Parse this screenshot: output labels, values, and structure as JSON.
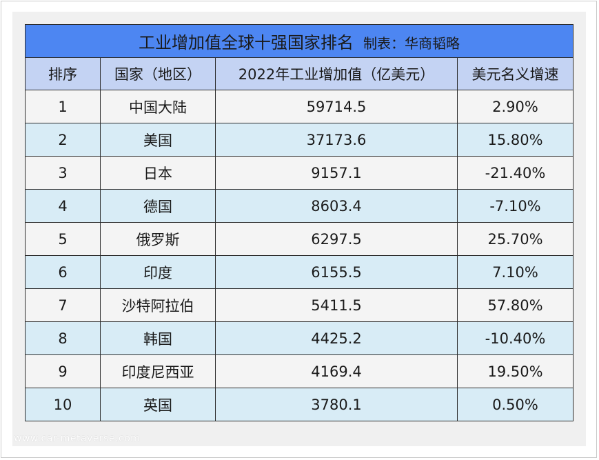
{
  "title": "工业增加值全球十强国家排名",
  "maker": "制表：华商韬略",
  "watermark": "www.car-metaverse.com",
  "colors": {
    "title_bg": "#4d86f2",
    "header_bg": "#c4d3f3",
    "row_light": "#f4f4f4",
    "row_blue": "#d8ecf6",
    "border": "#2b2b2b"
  },
  "chart_data": {
    "type": "table",
    "title": "工业增加值全球十强国家排名",
    "subtitle": "制表：华商韬略",
    "columns": [
      "排序",
      "国家（地区）",
      "2022年工业增加值（亿美元）",
      "美元名义增速"
    ],
    "rows": [
      [
        "1",
        "中国大陆",
        "59714.5",
        "2.90%"
      ],
      [
        "2",
        "美国",
        "37173.6",
        "15.80%"
      ],
      [
        "3",
        "日本",
        "9157.1",
        "-21.40%"
      ],
      [
        "4",
        "德国",
        "8603.4",
        "-7.10%"
      ],
      [
        "5",
        "俄罗斯",
        "6297.5",
        "25.70%"
      ],
      [
        "6",
        "印度",
        "6155.5",
        "7.10%"
      ],
      [
        "7",
        "沙特阿拉伯",
        "5411.5",
        "57.80%"
      ],
      [
        "8",
        "韩国",
        "4425.2",
        "-10.40%"
      ],
      [
        "9",
        "印度尼西亚",
        "4169.4",
        "19.50%"
      ],
      [
        "10",
        "英国",
        "3780.1",
        "0.50%"
      ]
    ]
  }
}
